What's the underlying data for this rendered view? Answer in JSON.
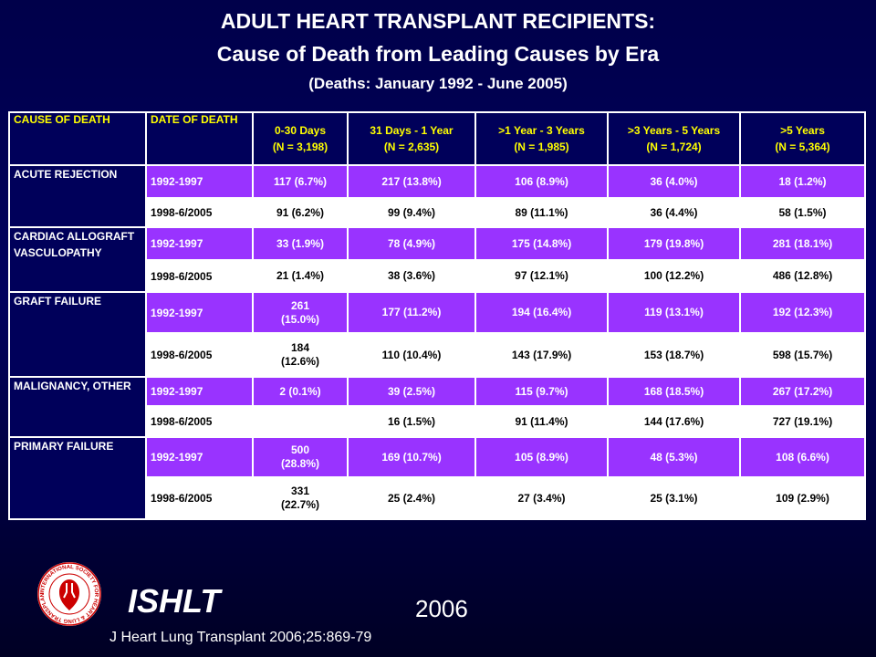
{
  "title": {
    "line1": "ADULT HEART TRANSPLANT RECIPIENTS:",
    "line2": "Cause of Death from Leading Causes by Era",
    "line3": "(Deaths: January 1992 - June 2005)"
  },
  "table": {
    "header": {
      "cause": "CAUSE OF DEATH",
      "date": "DATE OF DEATH",
      "c1_a": "0-30 Days",
      "c1_b": "(N = 3,198)",
      "c2_a": "31 Days - 1 Year",
      "c2_b": "(N = 2,635)",
      "c3_a": ">1 Year - 3 Years",
      "c3_b": "(N = 1,985)",
      "c4_a": ">3 Years - 5 Years",
      "c4_b": "(N = 1,724)",
      "c5_a": ">5 Years",
      "c5_b": "(N = 5,364)"
    },
    "groups": [
      {
        "cause": "ACUTE REJECTION",
        "rows": [
          {
            "date": "1992-1997",
            "c1": "117 (6.7%)",
            "c2": "217 (13.8%)",
            "c3": "106 (8.9%)",
            "c4": "36 (4.0%)",
            "c5": "18 (1.2%)"
          },
          {
            "date": "1998-6/2005",
            "c1": "91 (6.2%)",
            "c2": "99 (9.4%)",
            "c3": "89 (11.1%)",
            "c4": "36 (4.4%)",
            "c5": "58 (1.5%)"
          }
        ]
      },
      {
        "cause": "CARDIAC ALLOGRAFT VASCULOPATHY",
        "rows": [
          {
            "date": "1992-1997",
            "c1": "33 (1.9%)",
            "c2": "78 (4.9%)",
            "c3": "175 (14.8%)",
            "c4": "179 (19.8%)",
            "c5": "281 (18.1%)"
          },
          {
            "date": "1998-6/2005",
            "c1": "21 (1.4%)",
            "c2": "38 (3.6%)",
            "c3": "97 (12.1%)",
            "c4": "100 (12.2%)",
            "c5": "486 (12.8%)"
          }
        ]
      },
      {
        "cause": "GRAFT FAILURE",
        "rows": [
          {
            "date": "1992-1997",
            "c1a": "261",
            "c1b": "(15.0%)",
            "c2": "177 (11.2%)",
            "c3": "194 (16.4%)",
            "c4": "119 (13.1%)",
            "c5": "192 (12.3%)"
          },
          {
            "date": "1998-6/2005",
            "c1a": "184",
            "c1b": "(12.6%)",
            "c2": "110 (10.4%)",
            "c3": "143 (17.9%)",
            "c4": "153 (18.7%)",
            "c5": "598 (15.7%)"
          }
        ]
      },
      {
        "cause": "MALIGNANCY, OTHER",
        "rows": [
          {
            "date": "1992-1997",
            "c1": "2 (0.1%)",
            "c2": "39 (2.5%)",
            "c3": "115 (9.7%)",
            "c4": "168 (18.5%)",
            "c5": "267 (17.2%)"
          },
          {
            "date": "1998-6/2005",
            "c1": "",
            "c2": "16 (1.5%)",
            "c3": "91 (11.4%)",
            "c4": "144 (17.6%)",
            "c5": "727 (19.1%)"
          }
        ]
      },
      {
        "cause": "PRIMARY FAILURE",
        "rows": [
          {
            "date": "1992-1997",
            "c1a": "500",
            "c1b": "(28.8%)",
            "c2": "169 (10.7%)",
            "c3": "105 (8.9%)",
            "c4": "48 (5.3%)",
            "c5": "108 (6.6%)"
          },
          {
            "date": "1998-6/2005",
            "c1a": "331",
            "c1b": "(22.7%)",
            "c2": "25 (2.4%)",
            "c3": "27 (3.4%)",
            "c4": "25 (3.1%)",
            "c5": "109 (2.9%)"
          }
        ]
      }
    ]
  },
  "footer": {
    "brand": "ISHLT",
    "year": "2006",
    "citation": "J Heart Lung Transplant 2006;25:869-79",
    "logo_ring_text": "INTERNATIONAL SOCIETY FOR HEART & LUNG TRANSPLANTATION"
  },
  "colors": {
    "background": "#00005a",
    "header_text": "#ffff00",
    "row_odd": "#9933ff",
    "row_even": "#ffffff",
    "logo_red": "#cc0000"
  }
}
